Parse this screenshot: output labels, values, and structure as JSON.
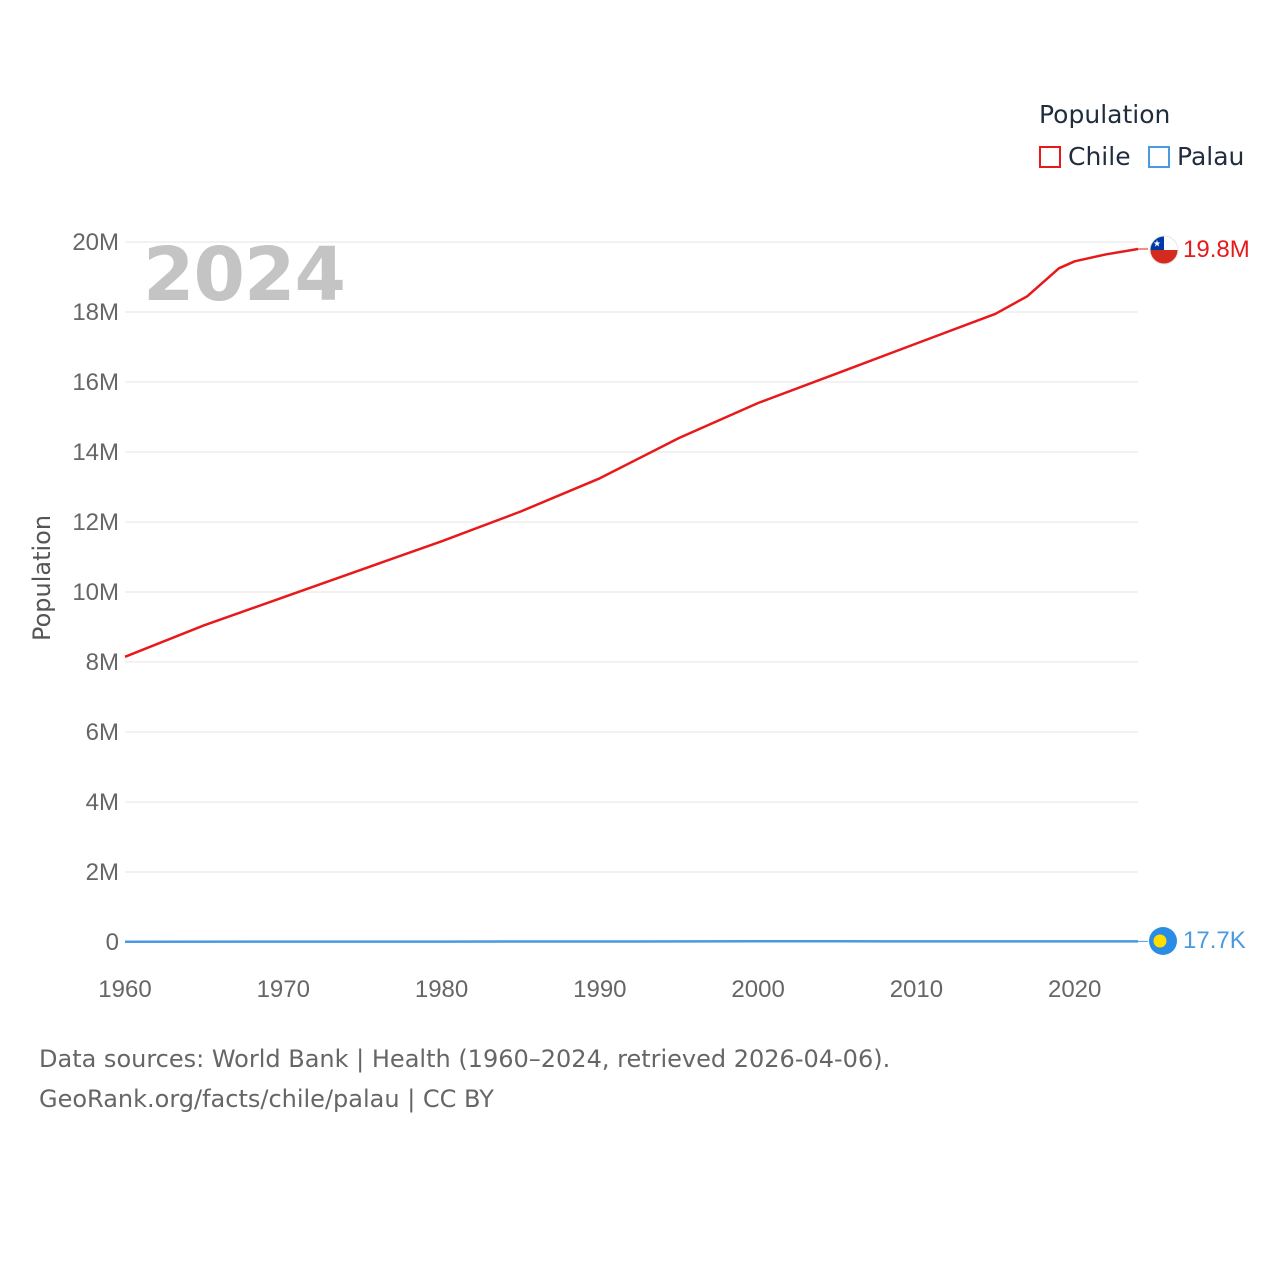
{
  "legend": {
    "title": "Population",
    "items": [
      {
        "label": "Chile",
        "color": "#e8191a"
      },
      {
        "label": "Palau",
        "color": "#4a9ae0"
      }
    ]
  },
  "year_stamp": "2024",
  "end_labels": {
    "chile": "19.8M",
    "palau": "17.7K"
  },
  "footer": {
    "line1": "Data sources: World Bank | Health (1960–2024, retrieved 2026-04-06).",
    "line2": "GeoRank.org/facts/chile/palau | CC BY"
  },
  "chart_data": {
    "type": "line",
    "title": "",
    "xlabel": "",
    "ylabel": "Population",
    "xlim": [
      1960,
      2024
    ],
    "ylim": [
      0,
      20000000
    ],
    "x_ticks": [
      1960,
      1970,
      1980,
      1990,
      2000,
      2010,
      2020
    ],
    "x_tick_labels": [
      "1960",
      "1970",
      "1980",
      "1990",
      "2000",
      "2010",
      "2020"
    ],
    "y_ticks": [
      0,
      2000000,
      4000000,
      6000000,
      8000000,
      10000000,
      12000000,
      14000000,
      16000000,
      18000000,
      20000000
    ],
    "y_tick_labels": [
      "0",
      "2M",
      "4M",
      "6M",
      "8M",
      "10M",
      "12M",
      "14M",
      "16M",
      "18M",
      "20M"
    ],
    "series": [
      {
        "name": "Chile",
        "color": "#e8191a",
        "x": [
          1960,
          1965,
          1970,
          1975,
          1980,
          1985,
          1990,
          1995,
          2000,
          2005,
          2010,
          2015,
          2017,
          2019,
          2020,
          2022,
          2024
        ],
        "values": [
          8150000,
          9050000,
          9850000,
          10650000,
          11450000,
          12300000,
          13250000,
          14400000,
          15400000,
          16250000,
          17100000,
          17950000,
          18450000,
          19250000,
          19450000,
          19650000,
          19800000
        ]
      },
      {
        "name": "Palau",
        "color": "#4a9ae0",
        "x": [
          1960,
          1970,
          1980,
          1990,
          2000,
          2005,
          2010,
          2015,
          2020,
          2024
        ],
        "values": [
          9600,
          11500,
          12200,
          15100,
          19000,
          19900,
          18500,
          17800,
          17900,
          17700
        ]
      }
    ]
  }
}
